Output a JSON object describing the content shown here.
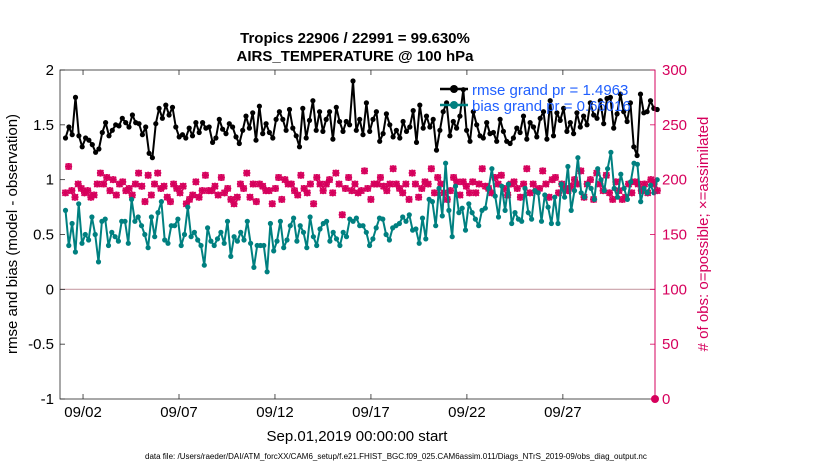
{
  "chart_data": {
    "type": "line",
    "title": "Tropics 22906 / 22991 = 99.630%",
    "subtitle": "AIRS_TEMPERATURE @ 100 hPa",
    "xlabel": "Sep.01,2019 00:00:00 start",
    "ylabel": "rmse and bias (model - observation)",
    "ylabel_right": "# of obs: o=possible; ×=assimilated",
    "ylim": [
      -1,
      2
    ],
    "ylim_right": [
      0,
      300
    ],
    "xlim": [
      0.3,
      31.3
    ],
    "x_ticks": [
      1.5,
      6.5,
      11.5,
      16.5,
      21.5,
      26.5
    ],
    "x_tick_labels": [
      "09/02",
      "09/07",
      "09/12",
      "09/17",
      "09/22",
      "09/27"
    ],
    "y_ticks": [
      -1,
      -0.5,
      0,
      0.5,
      1,
      1.5,
      2
    ],
    "y_tick_labels": [
      "-1",
      "-0.5",
      "0",
      "0.5",
      "1",
      "1.5",
      "2"
    ],
    "y_ticks_right": [
      0,
      50,
      100,
      150,
      200,
      250,
      300
    ],
    "y_tick_labels_right": [
      "0",
      "50",
      "100",
      "150",
      "200",
      "250",
      "300"
    ],
    "legend": [
      "rmse grand pr = 1.4963",
      "bias grand pr = 0.66016"
    ],
    "legend_position": "top-right",
    "footer": "data file: /Users/raeder/DAI/ATM_forcXX/CAM6_setup/f.e21.FHIST_BGC.f09_025.CAM6assim.011/Diags_NTrS_2019-09/obs_diag_output.nc",
    "colors": {
      "rmse": "#000000",
      "bias": "#008080",
      "obs": "#d6005c",
      "zero": "#c9a0a8"
    },
    "series": [
      {
        "name": "rmse",
        "values": [
          1.38,
          1.48,
          1.41,
          1.75,
          1.4,
          1.3,
          1.38,
          1.36,
          1.32,
          1.25,
          1.28,
          1.43,
          1.52,
          1.4,
          1.45,
          1.5,
          1.49,
          1.56,
          1.52,
          1.48,
          1.59,
          1.52,
          1.51,
          1.41,
          1.48,
          1.24,
          1.2,
          1.51,
          1.65,
          1.56,
          1.68,
          1.59,
          1.66,
          1.48,
          1.39,
          1.41,
          1.38,
          1.47,
          1.4,
          1.52,
          1.43,
          1.52,
          1.47,
          1.48,
          1.34,
          1.38,
          1.55,
          1.46,
          1.42,
          1.51,
          1.48,
          1.39,
          1.33,
          1.45,
          1.58,
          1.47,
          1.61,
          1.36,
          1.67,
          1.42,
          1.51,
          1.43,
          1.38,
          1.55,
          1.62,
          1.55,
          1.45,
          1.64,
          1.47,
          1.4,
          1.3,
          1.65,
          1.38,
          1.54,
          1.72,
          1.45,
          1.62,
          1.44,
          1.55,
          1.62,
          1.37,
          1.66,
          1.53,
          1.44,
          1.53,
          1.5,
          1.9,
          1.45,
          1.55,
          1.41,
          1.7,
          1.44,
          1.55,
          1.62,
          1.35,
          1.42,
          1.6,
          1.5,
          1.39,
          1.45,
          1.38,
          1.53,
          1.44,
          1.48,
          1.63,
          1.34,
          1.68,
          1.47,
          1.58,
          1.48,
          1.55,
          1.27,
          1.45,
          1.62,
          1.7,
          1.4,
          1.53,
          1.47,
          1.58,
          1.82,
          1.45,
          1.35,
          1.62,
          1.5,
          1.4,
          1.38,
          1.52,
          1.42,
          1.43,
          1.35,
          1.55,
          1.44,
          1.35,
          1.33,
          1.38,
          1.47,
          1.43,
          1.58,
          1.37,
          1.52,
          1.48,
          1.39,
          1.56,
          1.62,
          1.37,
          1.72,
          1.4,
          1.61,
          1.54,
          1.65,
          1.44,
          1.52,
          1.42,
          1.61,
          1.48,
          1.58,
          1.5,
          1.7,
          1.59,
          1.56,
          1.72,
          1.51,
          1.74,
          1.75,
          1.47,
          1.6,
          1.78,
          1.62,
          1.53,
          1.7,
          1.3,
          1.22,
          1.78,
          1.61,
          1.62,
          1.72,
          1.65,
          1.64
        ]
      },
      {
        "name": "bias",
        "values": [
          0.72,
          0.4,
          0.6,
          0.34,
          0.78,
          0.42,
          0.5,
          0.45,
          0.66,
          0.5,
          0.25,
          0.62,
          0.64,
          0.4,
          0.52,
          0.48,
          0.44,
          0.62,
          0.62,
          0.42,
          0.82,
          0.62,
          0.66,
          0.58,
          0.5,
          0.38,
          0.66,
          0.48,
          0.7,
          0.8,
          0.45,
          0.42,
          0.58,
          0.58,
          0.64,
          0.4,
          0.5,
          0.75,
          0.48,
          0.52,
          0.45,
          0.4,
          0.22,
          0.56,
          0.44,
          0.4,
          0.46,
          0.52,
          0.42,
          0.62,
          0.3,
          0.48,
          0.44,
          0.52,
          0.45,
          0.62,
          0.42,
          0.2,
          0.4,
          0.4,
          0.4,
          0.16,
          0.6,
          0.35,
          0.44,
          0.62,
          0.38,
          0.45,
          0.58,
          0.65,
          0.44,
          0.58,
          0.52,
          0.38,
          0.66,
          0.48,
          0.4,
          0.55,
          0.6,
          0.62,
          0.44,
          0.52,
          0.46,
          0.4,
          0.52,
          0.48,
          0.64,
          0.62,
          0.65,
          0.58,
          0.58,
          0.52,
          0.4,
          0.46,
          0.56,
          0.65,
          0.64,
          0.5,
          0.45,
          0.56,
          0.58,
          0.6,
          0.66,
          0.62,
          0.68,
          0.54,
          0.55,
          0.42,
          0.65,
          0.46,
          0.82,
          0.8,
          0.58,
          0.92,
          0.67,
          1.15,
          0.72,
          0.48,
          0.94,
          0.7,
          0.74,
          0.54,
          0.78,
          0.7,
          0.64,
          0.58,
          0.72,
          0.74,
          0.92,
          1.1,
          0.85,
          0.66,
          0.94,
          0.72,
          0.96,
          0.6,
          0.7,
          0.64,
          0.62,
          0.92,
          0.7,
          0.64,
          0.9,
          0.88,
          0.62,
          0.86,
          0.75,
          0.6,
          0.84,
          0.6,
          0.96,
          0.84,
          1.12,
          0.72,
          0.9,
          1.2,
          0.88,
          0.84,
          0.96,
          0.92,
          0.82,
          1.1,
          1.0,
          0.9,
          1.1,
          1.25,
          0.92,
          0.84,
          1.05,
          0.92,
          0.82,
          0.98,
          1.15,
          1.14,
          0.8,
          0.92,
          0.88,
          0.95,
          0.88,
          1.0
        ]
      },
      {
        "name": "obs_possible",
        "values": [
          188,
          212,
          190,
          184,
          196,
          192,
          188,
          190,
          184,
          186,
          196,
          206,
          196,
          202,
          190,
          200,
          186,
          196,
          198,
          190,
          192,
          186,
          196,
          206,
          194,
          180,
          204,
          186,
          196,
          206,
          192,
          194,
          184,
          180,
          196,
          192,
          188,
          194,
          178,
          182,
          186,
          198,
          184,
          190,
          204,
          190,
          190,
          194,
          186,
          202,
          188,
          192,
          182,
          178,
          184,
          196,
          192,
          206,
          184,
          196,
          180,
          196,
          194,
          190,
          190,
          178,
          192,
          202,
          182,
          200,
          196,
          196,
          190,
          186,
          204,
          192,
          188,
          196,
          178,
          202,
          196,
          190,
          196,
          200,
          188,
          206,
          196,
          168,
          192,
          202,
          190,
          196,
          188,
          190,
          208,
          192,
          182,
          196,
          196,
          202,
          194,
          190,
          196,
          210,
          196,
          192,
          188,
          196,
          182,
          206,
          196,
          184,
          192,
          198,
          196,
          210,
          188,
          202,
          196,
          188,
          182,
          190,
          202,
          198,
          186,
          198,
          194,
          188,
          198,
          188,
          196,
          210,
          194,
          192,
          188,
          202,
          196,
          204,
          192,
          186,
          196,
          198,
          192,
          184,
          196,
          210,
          188,
          196,
          190,
          192,
          208,
          196,
          184,
          200,
          202,
          188,
          196,
          192,
          190,
          194,
          200,
          196,
          208,
          184,
          196,
          200,
          182,
          206,
          196,
          190,
          204,
          188,
          182,
          198,
          190,
          182,
          184,
          196,
          188,
          198,
          196,
          190,
          196,
          188,
          200,
          196,
          190
        ]
      },
      {
        "name": "obs_assimilated",
        "values": [
          188,
          212,
          190,
          184,
          196,
          192,
          188,
          190,
          184,
          186,
          196,
          206,
          196,
          202,
          190,
          200,
          186,
          196,
          198,
          190,
          192,
          186,
          196,
          206,
          194,
          180,
          204,
          186,
          196,
          206,
          192,
          194,
          184,
          180,
          196,
          192,
          188,
          194,
          178,
          182,
          186,
          198,
          184,
          190,
          204,
          190,
          190,
          194,
          186,
          202,
          188,
          192,
          182,
          178,
          184,
          196,
          192,
          206,
          184,
          196,
          180,
          196,
          194,
          190,
          190,
          178,
          192,
          202,
          182,
          200,
          196,
          196,
          190,
          186,
          204,
          192,
          188,
          196,
          178,
          202,
          196,
          190,
          196,
          200,
          188,
          206,
          196,
          168,
          192,
          202,
          190,
          196,
          188,
          190,
          208,
          192,
          182,
          196,
          196,
          202,
          194,
          190,
          196,
          210,
          196,
          192,
          188,
          196,
          182,
          206,
          196,
          184,
          192,
          198,
          196,
          210,
          188,
          202,
          196,
          188,
          182,
          190,
          202,
          198,
          186,
          198,
          194,
          188,
          198,
          188,
          196,
          210,
          194,
          192,
          188,
          202,
          196,
          204,
          192,
          186,
          196,
          198,
          192,
          184,
          196,
          210,
          188,
          196,
          190,
          192,
          208,
          196,
          184,
          200,
          202,
          188,
          196,
          192,
          190,
          194,
          200,
          196,
          208,
          184,
          196,
          200,
          182,
          206,
          196,
          190,
          204,
          188,
          182,
          198,
          190,
          182,
          184,
          196,
          188,
          198,
          196,
          190,
          196,
          188,
          200,
          196,
          190
        ]
      }
    ]
  }
}
